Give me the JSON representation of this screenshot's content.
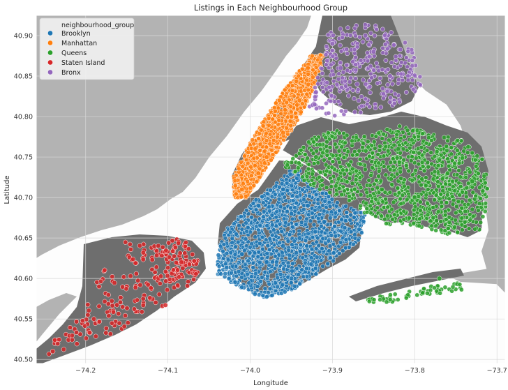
{
  "chart_data": {
    "type": "scatter",
    "title": "Listings in Each Neighbourhood Group",
    "xlabel": "Longitude",
    "ylabel": "Latitude",
    "xlim": [
      -74.26,
      -73.69
    ],
    "ylim": [
      40.495,
      40.925
    ],
    "xticks": [
      -74.2,
      -74.1,
      -74.0,
      -73.9,
      -73.8,
      -73.7
    ],
    "xtick_labels": [
      "−74.2",
      "−74.1",
      "−74.0",
      "−73.9",
      "−73.8",
      "−73.7"
    ],
    "yticks": [
      40.5,
      40.55,
      40.6,
      40.65,
      40.7,
      40.75,
      40.8,
      40.85,
      40.9
    ],
    "ytick_labels": [
      "40.50",
      "40.55",
      "40.60",
      "40.65",
      "40.70",
      "40.75",
      "40.80",
      "40.85",
      "40.90"
    ],
    "grid": true,
    "background": "map of New York City boroughs",
    "legend": {
      "title": "neighbourhood_group",
      "position": "top-left"
    },
    "series": [
      {
        "name": "Brooklyn",
        "color": "#1f77b4",
        "extent": {
          "lon": [
            -74.04,
            -73.86
          ],
          "lat": [
            40.575,
            40.74
          ]
        },
        "x": [
          -73.99,
          -73.96,
          -73.95,
          -73.94,
          -73.96,
          -73.98,
          -74.01,
          -73.95,
          -73.91,
          -73.93
        ],
        "y": [
          40.69,
          40.71,
          40.68,
          40.65,
          40.64,
          40.62,
          40.63,
          40.6,
          40.67,
          40.69
        ]
      },
      {
        "name": "Manhattan",
        "color": "#ff7f0e",
        "extent": {
          "lon": [
            -74.02,
            -73.91
          ],
          "lat": [
            40.7,
            40.878
          ]
        },
        "x": [
          -74.01,
          -73.99,
          -73.98,
          -73.96,
          -73.95,
          -73.94,
          -73.93
        ],
        "y": [
          40.71,
          40.73,
          40.75,
          40.78,
          40.8,
          40.82,
          40.86
        ]
      },
      {
        "name": "Queens",
        "color": "#2ca02c",
        "extent": {
          "lon": [
            -73.96,
            -73.71
          ],
          "lat": [
            40.565,
            40.8
          ]
        },
        "x": [
          -73.92,
          -73.88,
          -73.84,
          -73.8,
          -73.76,
          -73.73,
          -73.82,
          -73.78,
          -73.77
        ],
        "y": [
          40.75,
          40.74,
          40.71,
          40.7,
          40.73,
          40.72,
          40.76,
          40.59,
          40.6
        ]
      },
      {
        "name": "Staten Island",
        "color": "#d62728",
        "extent": {
          "lon": [
            -74.25,
            -74.06
          ],
          "lat": [
            40.5,
            40.65
          ]
        },
        "x": [
          -74.08,
          -74.1,
          -74.09,
          -74.15,
          -74.17,
          -74.19,
          -74.24
        ],
        "y": [
          40.64,
          40.62,
          40.6,
          40.59,
          40.56,
          40.55,
          40.51
        ]
      },
      {
        "name": "Bronx",
        "color": "#9467bd",
        "extent": {
          "lon": [
            -73.93,
            -73.78
          ],
          "lat": [
            40.8,
            40.915
          ]
        },
        "x": [
          -73.92,
          -73.89,
          -73.87,
          -73.85,
          -73.83,
          -73.86,
          -73.9
        ],
        "y": [
          40.83,
          40.86,
          40.84,
          40.88,
          40.85,
          40.9,
          40.89
        ]
      }
    ]
  }
}
